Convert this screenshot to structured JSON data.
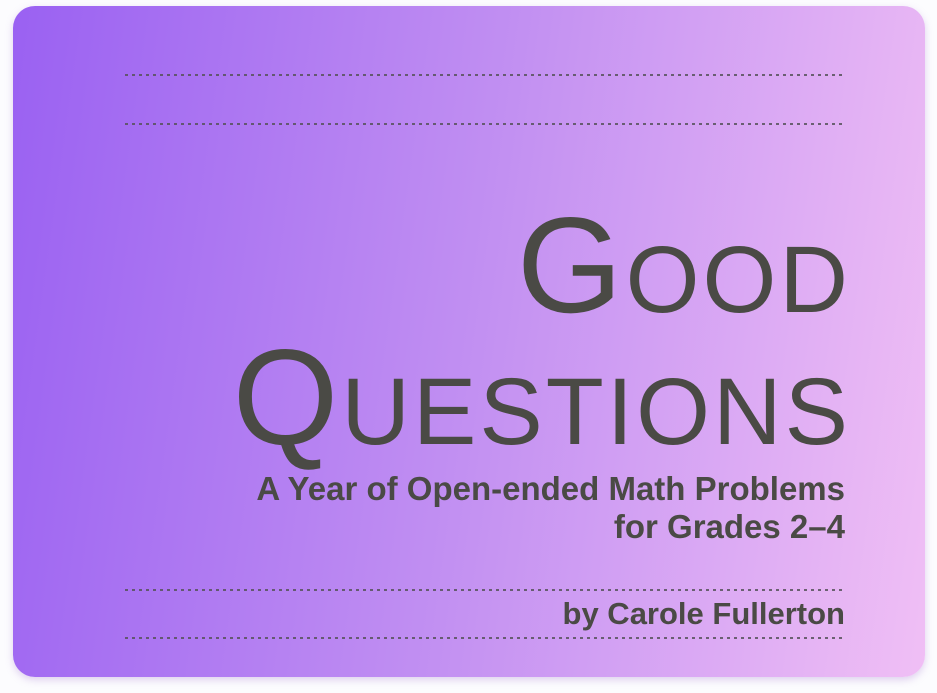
{
  "cover": {
    "title_line1": "Good",
    "title_line2": "Questions",
    "subtitle_line1": "A Year of Open-ended Math Problems",
    "subtitle_line2": "for Grades 2–4",
    "byline": "by Carole Fullerton"
  },
  "colors": {
    "gradient_start": "#9a61f2",
    "gradient_mid": "#c18ff2",
    "gradient_end": "#f0bff5",
    "text": "#4a4a45",
    "rule_dashes": "rgba(86,82,90,0.85)",
    "page_background": "#fcfcfe"
  }
}
